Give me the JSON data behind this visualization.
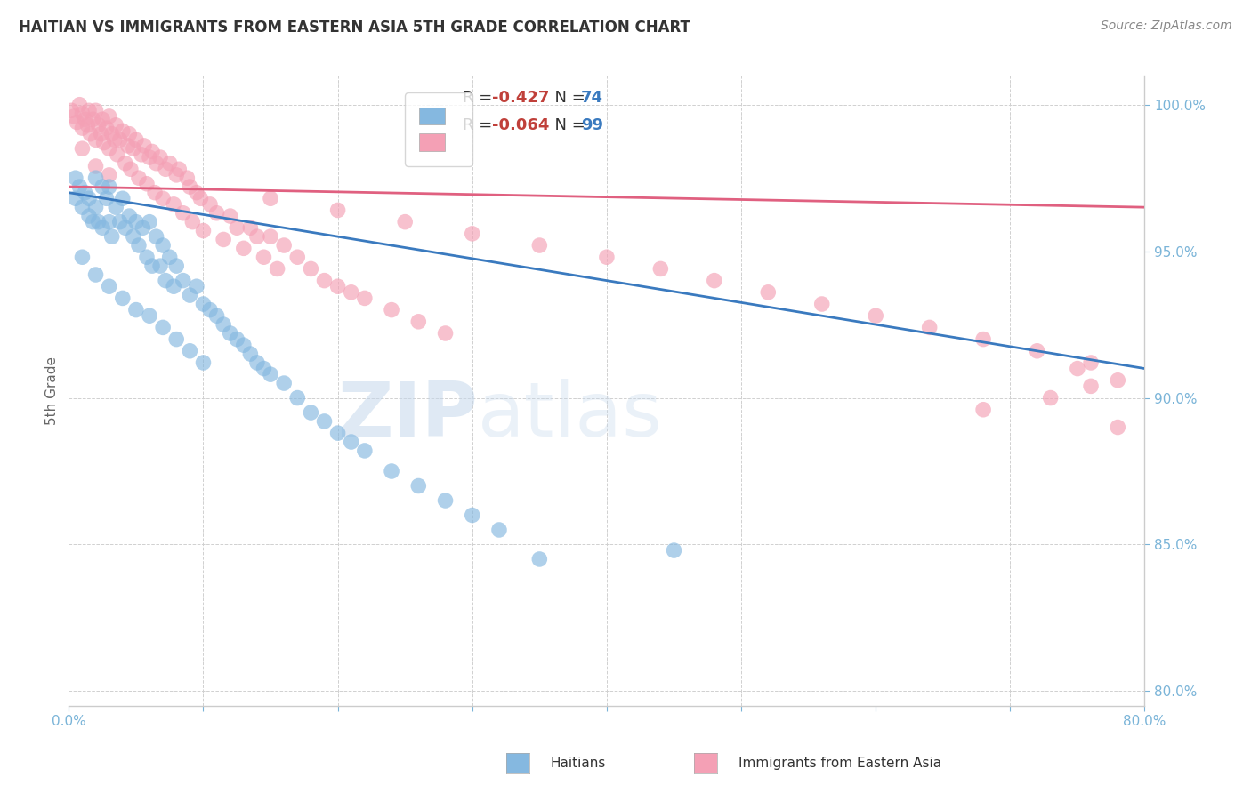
{
  "title": "HAITIAN VS IMMIGRANTS FROM EASTERN ASIA 5TH GRADE CORRELATION CHART",
  "source": "Source: ZipAtlas.com",
  "xlabel_blue": "Haitians",
  "xlabel_pink": "Immigrants from Eastern Asia",
  "ylabel": "5th Grade",
  "xmin": 0.0,
  "xmax": 0.8,
  "ymin": 0.795,
  "ymax": 1.01,
  "yticks": [
    0.8,
    0.85,
    0.9,
    0.95,
    1.0
  ],
  "ytick_labels": [
    "80.0%",
    "85.0%",
    "90.0%",
    "95.0%",
    "100.0%"
  ],
  "xticks": [
    0.0,
    0.1,
    0.2,
    0.3,
    0.4,
    0.5,
    0.6,
    0.7,
    0.8
  ],
  "xtick_labels": [
    "0.0%",
    "",
    "",
    "",
    "",
    "",
    "",
    "",
    "80.0%"
  ],
  "r_blue": -0.427,
  "n_blue": 74,
  "r_pink": -0.064,
  "n_pink": 99,
  "blue_color": "#85b8e0",
  "pink_color": "#f4a0b5",
  "blue_line_color": "#3a7abf",
  "pink_line_color": "#e06080",
  "blue_line_y0": 0.97,
  "blue_line_y1": 0.91,
  "pink_line_y0": 0.972,
  "pink_line_y1": 0.965,
  "blue_scatter_x": [
    0.005,
    0.005,
    0.008,
    0.01,
    0.012,
    0.015,
    0.015,
    0.018,
    0.02,
    0.02,
    0.022,
    0.025,
    0.025,
    0.028,
    0.03,
    0.03,
    0.032,
    0.035,
    0.038,
    0.04,
    0.042,
    0.045,
    0.048,
    0.05,
    0.052,
    0.055,
    0.058,
    0.06,
    0.062,
    0.065,
    0.068,
    0.07,
    0.072,
    0.075,
    0.078,
    0.08,
    0.085,
    0.09,
    0.095,
    0.1,
    0.105,
    0.11,
    0.115,
    0.12,
    0.125,
    0.13,
    0.135,
    0.14,
    0.145,
    0.15,
    0.16,
    0.17,
    0.18,
    0.19,
    0.2,
    0.21,
    0.22,
    0.24,
    0.26,
    0.28,
    0.3,
    0.32,
    0.35,
    0.01,
    0.02,
    0.03,
    0.04,
    0.05,
    0.06,
    0.07,
    0.08,
    0.09,
    0.1,
    0.45
  ],
  "blue_scatter_y": [
    0.975,
    0.968,
    0.972,
    0.965,
    0.97,
    0.968,
    0.962,
    0.96,
    0.975,
    0.965,
    0.96,
    0.972,
    0.958,
    0.968,
    0.972,
    0.96,
    0.955,
    0.965,
    0.96,
    0.968,
    0.958,
    0.962,
    0.955,
    0.96,
    0.952,
    0.958,
    0.948,
    0.96,
    0.945,
    0.955,
    0.945,
    0.952,
    0.94,
    0.948,
    0.938,
    0.945,
    0.94,
    0.935,
    0.938,
    0.932,
    0.93,
    0.928,
    0.925,
    0.922,
    0.92,
    0.918,
    0.915,
    0.912,
    0.91,
    0.908,
    0.905,
    0.9,
    0.895,
    0.892,
    0.888,
    0.885,
    0.882,
    0.875,
    0.87,
    0.865,
    0.86,
    0.855,
    0.845,
    0.948,
    0.942,
    0.938,
    0.934,
    0.93,
    0.928,
    0.924,
    0.92,
    0.916,
    0.912,
    0.848
  ],
  "pink_scatter_x": [
    0.002,
    0.004,
    0.006,
    0.008,
    0.01,
    0.01,
    0.012,
    0.014,
    0.015,
    0.016,
    0.018,
    0.02,
    0.02,
    0.022,
    0.024,
    0.025,
    0.026,
    0.028,
    0.03,
    0.03,
    0.032,
    0.034,
    0.035,
    0.036,
    0.038,
    0.04,
    0.042,
    0.044,
    0.045,
    0.046,
    0.048,
    0.05,
    0.052,
    0.054,
    0.056,
    0.058,
    0.06,
    0.062,
    0.064,
    0.065,
    0.068,
    0.07,
    0.072,
    0.075,
    0.078,
    0.08,
    0.082,
    0.085,
    0.088,
    0.09,
    0.092,
    0.095,
    0.098,
    0.1,
    0.105,
    0.11,
    0.115,
    0.12,
    0.125,
    0.13,
    0.135,
    0.14,
    0.145,
    0.15,
    0.155,
    0.16,
    0.17,
    0.18,
    0.19,
    0.2,
    0.21,
    0.22,
    0.24,
    0.26,
    0.28,
    0.01,
    0.02,
    0.03,
    0.15,
    0.2,
    0.25,
    0.3,
    0.35,
    0.4,
    0.44,
    0.48,
    0.52,
    0.56,
    0.6,
    0.64,
    0.68,
    0.72,
    0.75,
    0.78,
    0.76,
    0.68,
    0.73,
    0.76,
    0.78
  ],
  "pink_scatter_y": [
    0.998,
    0.996,
    0.994,
    1.0,
    0.997,
    0.992,
    0.995,
    0.993,
    0.998,
    0.99,
    0.995,
    0.998,
    0.988,
    0.993,
    0.99,
    0.995,
    0.987,
    0.992,
    0.996,
    0.985,
    0.99,
    0.988,
    0.993,
    0.983,
    0.988,
    0.991,
    0.98,
    0.986,
    0.99,
    0.978,
    0.985,
    0.988,
    0.975,
    0.983,
    0.986,
    0.973,
    0.982,
    0.984,
    0.97,
    0.98,
    0.982,
    0.968,
    0.978,
    0.98,
    0.966,
    0.976,
    0.978,
    0.963,
    0.975,
    0.972,
    0.96,
    0.97,
    0.968,
    0.957,
    0.966,
    0.963,
    0.954,
    0.962,
    0.958,
    0.951,
    0.958,
    0.955,
    0.948,
    0.955,
    0.944,
    0.952,
    0.948,
    0.944,
    0.94,
    0.938,
    0.936,
    0.934,
    0.93,
    0.926,
    0.922,
    0.985,
    0.979,
    0.976,
    0.968,
    0.964,
    0.96,
    0.956,
    0.952,
    0.948,
    0.944,
    0.94,
    0.936,
    0.932,
    0.928,
    0.924,
    0.92,
    0.916,
    0.91,
    0.906,
    0.912,
    0.896,
    0.9,
    0.904,
    0.89
  ],
  "watermark_zip": "ZIP",
  "watermark_atlas": "atlas",
  "background_color": "#ffffff",
  "grid_color": "#d0d0d0",
  "tick_color": "#7ab4d8",
  "title_color": "#333333",
  "ylabel_color": "#666666",
  "source_color": "#888888"
}
